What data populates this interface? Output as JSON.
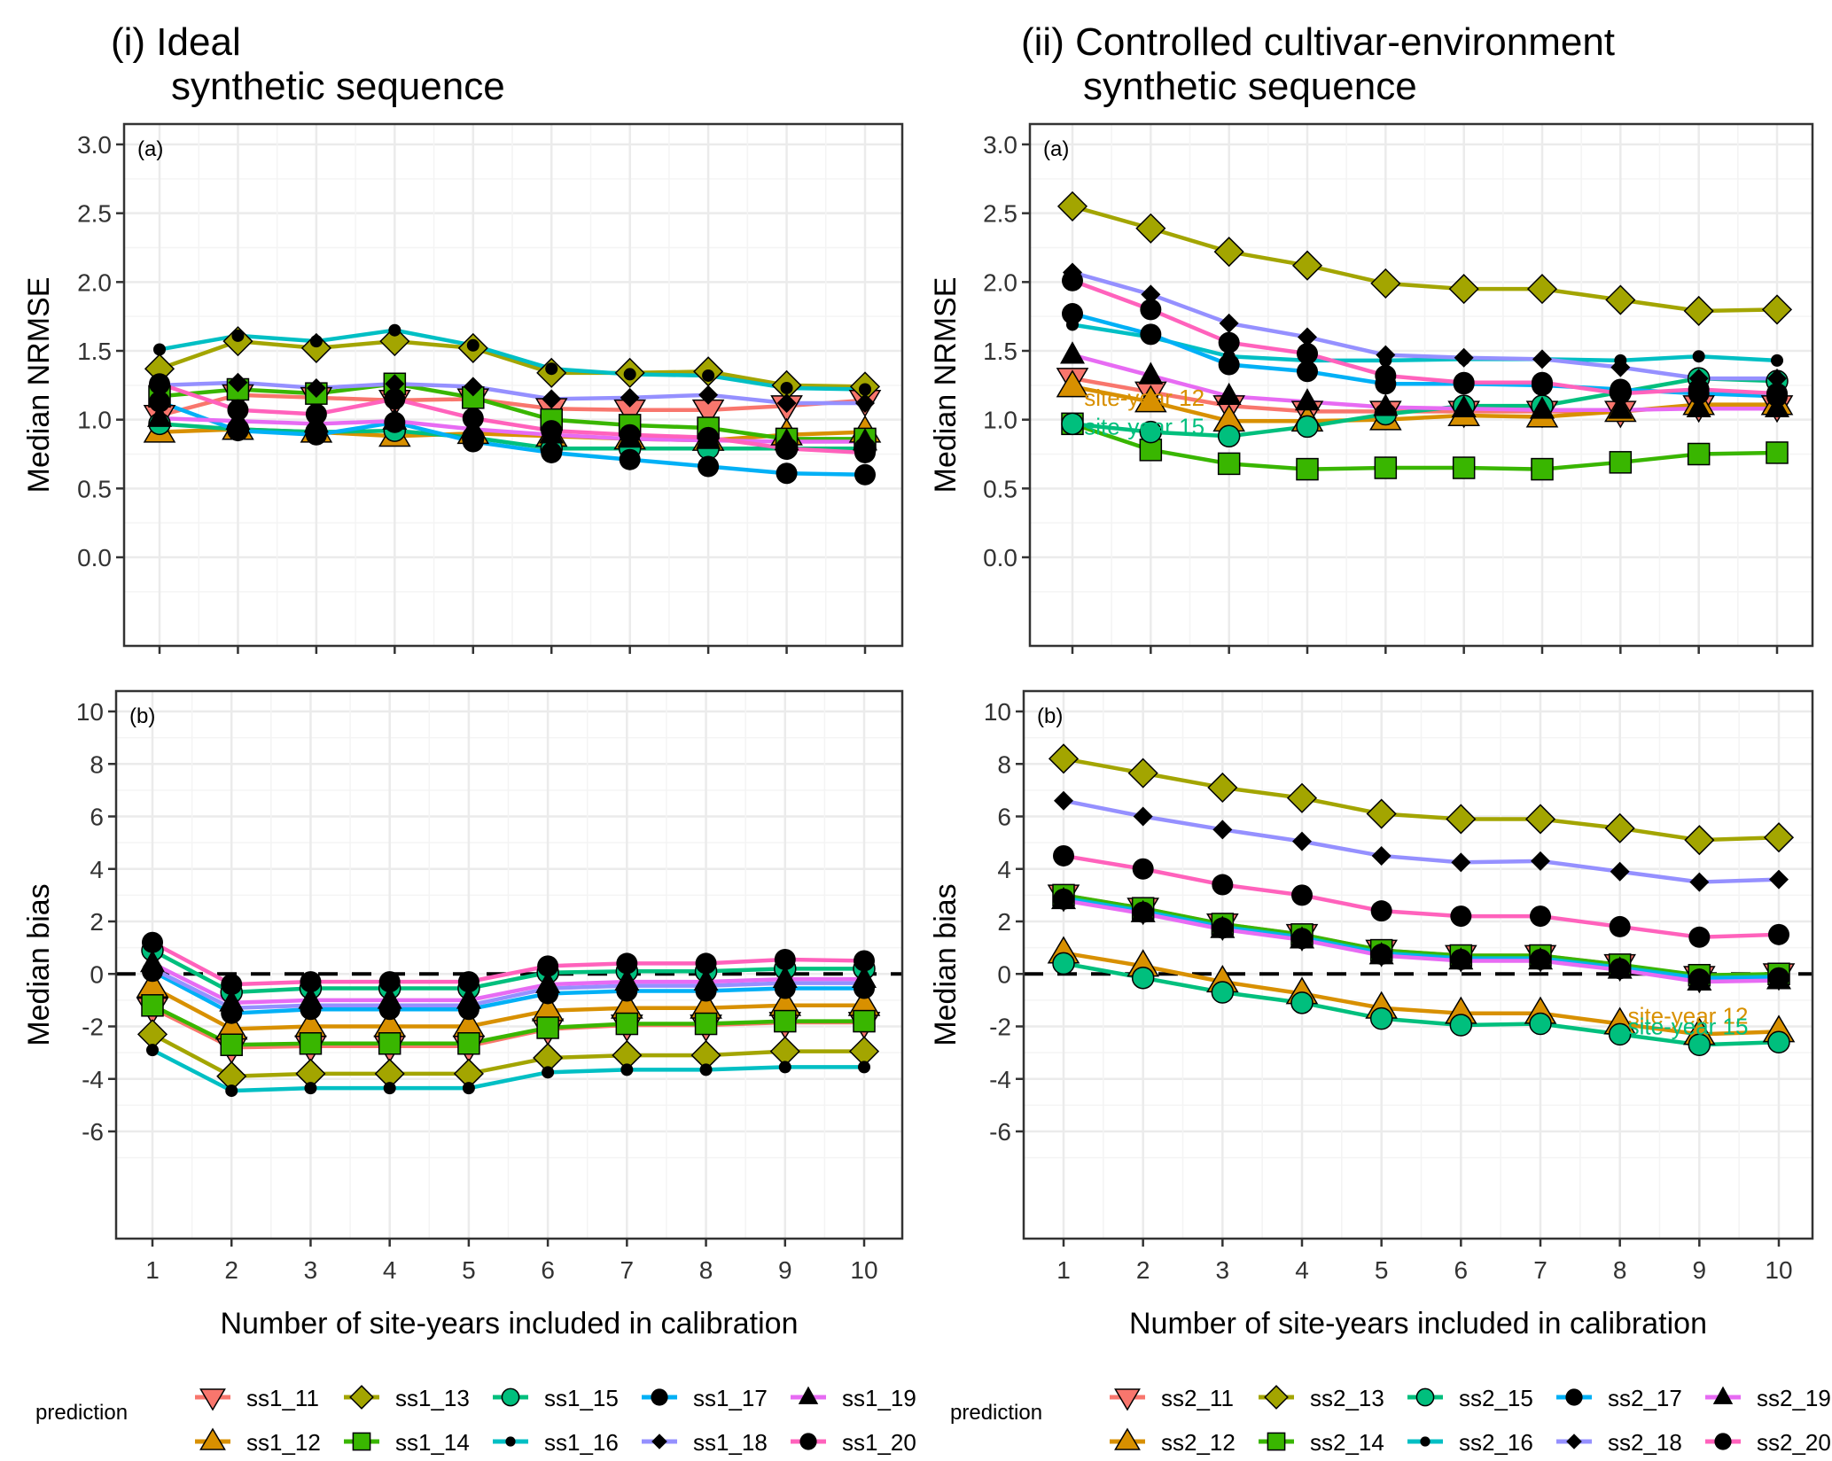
{
  "colors": {
    "11": "#F8766D",
    "12": "#D89000",
    "13": "#A3A500",
    "14": "#39B600",
    "15": "#00BF7D",
    "16": "#00BFC4",
    "17": "#00B0F6",
    "18": "#9590FF",
    "19": "#E76BF3",
    "20": "#FF62BC"
  },
  "legend_title": "prediction",
  "chart_data": [
    {
      "id": "i-a",
      "type": "line",
      "column_title": [
        "(i) Ideal",
        "synthetic sequence"
      ],
      "panel_tag": "(a)",
      "ylabel": "Median NRMSE",
      "xlabel": "",
      "x": [
        1,
        2,
        3,
        4,
        5,
        6,
        7,
        8,
        9,
        10
      ],
      "ylim": [
        0,
        3.0
      ],
      "yticks": [
        "0.0",
        "0.5",
        "1.0",
        "1.5",
        "2.0",
        "2.5",
        "3.0"
      ],
      "ytick_values": [
        0,
        0.5,
        1,
        1.5,
        2,
        2.5,
        3
      ],
      "grid": true,
      "series": [
        {
          "name": "ss1_11",
          "key": "11",
          "shape": "tri-down",
          "values": [
            1.03,
            1.18,
            1.16,
            1.14,
            1.15,
            1.08,
            1.07,
            1.07,
            1.1,
            1.14
          ]
        },
        {
          "name": "ss1_12",
          "key": "12",
          "shape": "tri-up",
          "values": [
            0.91,
            0.93,
            0.91,
            0.88,
            0.9,
            0.88,
            0.86,
            0.85,
            0.89,
            0.91
          ]
        },
        {
          "name": "ss1_13",
          "key": "13",
          "shape": "diamond",
          "values": [
            1.37,
            1.57,
            1.52,
            1.57,
            1.52,
            1.34,
            1.34,
            1.35,
            1.25,
            1.24
          ]
        },
        {
          "name": "ss1_14",
          "key": "14",
          "shape": "square",
          "values": [
            1.17,
            1.22,
            1.19,
            1.26,
            1.16,
            1.0,
            0.96,
            0.94,
            0.86,
            0.86
          ]
        },
        {
          "name": "ss1_15",
          "key": "15",
          "shape": "circle",
          "values": [
            0.97,
            0.93,
            0.91,
            0.92,
            0.87,
            0.79,
            0.79,
            0.79,
            0.79,
            0.79
          ]
        },
        {
          "name": "ss1_16",
          "key": "16",
          "shape": "dot-small",
          "values": [
            1.51,
            1.61,
            1.57,
            1.65,
            1.54,
            1.37,
            1.33,
            1.32,
            1.23,
            1.22
          ]
        },
        {
          "name": "ss1_17",
          "key": "17",
          "shape": "dot",
          "values": [
            1.13,
            0.92,
            0.89,
            0.98,
            0.84,
            0.76,
            0.71,
            0.66,
            0.61,
            0.6
          ]
        },
        {
          "name": "ss1_18",
          "key": "18",
          "shape": "diamond-black",
          "values": [
            1.25,
            1.27,
            1.23,
            1.26,
            1.24,
            1.15,
            1.16,
            1.18,
            1.12,
            1.12
          ]
        },
        {
          "name": "ss1_19",
          "key": "19",
          "shape": "tri-black",
          "values": [
            1.01,
            0.99,
            0.97,
            0.99,
            0.93,
            0.89,
            0.86,
            0.85,
            0.84,
            0.84
          ]
        },
        {
          "name": "ss1_20",
          "key": "20",
          "shape": "dot",
          "values": [
            1.26,
            1.07,
            1.04,
            1.15,
            1.01,
            0.92,
            0.89,
            0.87,
            0.79,
            0.76
          ]
        }
      ],
      "annotations": []
    },
    {
      "id": "ii-a",
      "type": "line",
      "column_title": [
        "(ii) Controlled cultivar-environment",
        "synthetic sequence"
      ],
      "panel_tag": "(a)",
      "ylabel": "Median NRMSE",
      "xlabel": "",
      "x": [
        1,
        2,
        3,
        4,
        5,
        6,
        7,
        8,
        9,
        10
      ],
      "ylim": [
        0,
        3.0
      ],
      "yticks": [
        "0.0",
        "0.5",
        "1.0",
        "1.5",
        "2.0",
        "2.5",
        "3.0"
      ],
      "ytick_values": [
        0,
        0.5,
        1,
        1.5,
        2,
        2.5,
        3
      ],
      "grid": true,
      "series": [
        {
          "name": "ss2_11",
          "key": "11",
          "shape": "tri-down",
          "values": [
            1.3,
            1.2,
            1.1,
            1.06,
            1.06,
            1.06,
            1.06,
            1.06,
            1.1,
            1.1
          ]
        },
        {
          "name": "ss2_12",
          "key": "12",
          "shape": "tri-up",
          "values": [
            1.24,
            1.13,
            0.99,
            0.99,
            1.0,
            1.03,
            1.02,
            1.06,
            1.11,
            1.11
          ]
        },
        {
          "name": "ss2_13",
          "key": "13",
          "shape": "diamond",
          "values": [
            2.55,
            2.39,
            2.22,
            2.12,
            1.99,
            1.95,
            1.95,
            1.87,
            1.79,
            1.8
          ]
        },
        {
          "name": "ss2_14",
          "key": "14",
          "shape": "square",
          "values": [
            0.97,
            0.78,
            0.68,
            0.64,
            0.65,
            0.65,
            0.64,
            0.69,
            0.75,
            0.76
          ]
        },
        {
          "name": "ss2_15",
          "key": "15",
          "shape": "circle",
          "values": [
            0.97,
            0.91,
            0.88,
            0.95,
            1.04,
            1.1,
            1.1,
            1.2,
            1.3,
            1.28
          ]
        },
        {
          "name": "ss2_16",
          "key": "16",
          "shape": "dot-small",
          "values": [
            1.69,
            1.6,
            1.46,
            1.43,
            1.43,
            1.44,
            1.44,
            1.43,
            1.46,
            1.43
          ]
        },
        {
          "name": "ss2_17",
          "key": "17",
          "shape": "dot",
          "values": [
            1.77,
            1.62,
            1.4,
            1.35,
            1.26,
            1.26,
            1.25,
            1.22,
            1.19,
            1.17
          ]
        },
        {
          "name": "ss2_18",
          "key": "18",
          "shape": "diamond-black",
          "values": [
            2.07,
            1.91,
            1.7,
            1.6,
            1.47,
            1.45,
            1.44,
            1.38,
            1.3,
            1.3
          ]
        },
        {
          "name": "ss2_19",
          "key": "19",
          "shape": "tri-black",
          "values": [
            1.47,
            1.32,
            1.17,
            1.13,
            1.09,
            1.08,
            1.07,
            1.07,
            1.08,
            1.08
          ]
        },
        {
          "name": "ss2_20",
          "key": "20",
          "shape": "dot",
          "values": [
            2.01,
            1.8,
            1.56,
            1.48,
            1.32,
            1.27,
            1.27,
            1.19,
            1.22,
            1.19
          ]
        }
      ],
      "annotations": [
        {
          "text": "site-year 12",
          "key": "12",
          "x": 1.15,
          "y": 1.16
        },
        {
          "text": "site-year 15",
          "key": "15",
          "x": 1.15,
          "y": 0.95
        }
      ]
    },
    {
      "id": "i-b",
      "type": "line",
      "panel_tag": "(b)",
      "ylabel": "Median bias",
      "xlabel": "Number of site-years included in calibration",
      "x": [
        1,
        2,
        3,
        4,
        5,
        6,
        7,
        8,
        9,
        10
      ],
      "xticks": [
        "1",
        "2",
        "3",
        "4",
        "5",
        "6",
        "7",
        "8",
        "9",
        "10"
      ],
      "ylim": [
        -6.8,
        10.8
      ],
      "yticks": [
        "-6",
        "-4",
        "-2",
        "0",
        "2",
        "4",
        "6",
        "8",
        "10"
      ],
      "ytick_values": [
        -6,
        -4,
        -2,
        0,
        2,
        4,
        6,
        8,
        10
      ],
      "reference_line": 0,
      "grid": true,
      "series": [
        {
          "name": "ss1_11",
          "key": "11",
          "shape": "tri-down",
          "values": [
            -1.3,
            -2.8,
            -2.75,
            -2.75,
            -2.75,
            -2.1,
            -1.95,
            -1.95,
            -1.85,
            -1.85
          ]
        },
        {
          "name": "ss1_12",
          "key": "12",
          "shape": "tri-up",
          "values": [
            -0.5,
            -2.1,
            -2.0,
            -2.0,
            -2.0,
            -1.4,
            -1.3,
            -1.3,
            -1.2,
            -1.2
          ]
        },
        {
          "name": "ss1_13",
          "key": "13",
          "shape": "diamond",
          "values": [
            -2.3,
            -3.9,
            -3.8,
            -3.8,
            -3.8,
            -3.2,
            -3.1,
            -3.1,
            -2.95,
            -2.95
          ]
        },
        {
          "name": "ss1_14",
          "key": "14",
          "shape": "square",
          "values": [
            -1.2,
            -2.7,
            -2.65,
            -2.65,
            -2.65,
            -2.05,
            -1.9,
            -1.9,
            -1.8,
            -1.8
          ]
        },
        {
          "name": "ss1_15",
          "key": "15",
          "shape": "circle",
          "values": [
            0.9,
            -0.7,
            -0.55,
            -0.55,
            -0.55,
            0.05,
            0.1,
            0.1,
            0.2,
            0.2
          ]
        },
        {
          "name": "ss1_16",
          "key": "16",
          "shape": "dot-small",
          "values": [
            -2.9,
            -4.45,
            -4.35,
            -4.35,
            -4.35,
            -3.75,
            -3.65,
            -3.65,
            -3.55,
            -3.55
          ]
        },
        {
          "name": "ss1_17",
          "key": "17",
          "shape": "dot",
          "values": [
            0.1,
            -1.5,
            -1.35,
            -1.35,
            -1.35,
            -0.75,
            -0.65,
            -0.65,
            -0.55,
            -0.55
          ]
        },
        {
          "name": "ss1_18",
          "key": "18",
          "shape": "diamond-black",
          "values": [
            0.2,
            -1.3,
            -1.2,
            -1.2,
            -1.2,
            -0.55,
            -0.45,
            -0.45,
            -0.35,
            -0.35
          ]
        },
        {
          "name": "ss1_19",
          "key": "19",
          "shape": "tri-black",
          "values": [
            0.4,
            -1.1,
            -1.0,
            -1.0,
            -1.0,
            -0.4,
            -0.3,
            -0.3,
            -0.2,
            -0.2
          ]
        },
        {
          "name": "ss1_20",
          "key": "20",
          "shape": "dot",
          "values": [
            1.2,
            -0.4,
            -0.3,
            -0.3,
            -0.3,
            0.3,
            0.4,
            0.4,
            0.55,
            0.5
          ]
        }
      ],
      "annotations": []
    },
    {
      "id": "ii-b",
      "type": "line",
      "panel_tag": "(b)",
      "ylabel": "Median bias",
      "xlabel": "Number of site-years included in calibration",
      "x": [
        1,
        2,
        3,
        4,
        5,
        6,
        7,
        8,
        9,
        10
      ],
      "xticks": [
        "1",
        "2",
        "3",
        "4",
        "5",
        "6",
        "7",
        "8",
        "9",
        "10"
      ],
      "ylim": [
        -6.8,
        10.8
      ],
      "yticks": [
        "-6",
        "-4",
        "-2",
        "0",
        "2",
        "4",
        "6",
        "8",
        "10"
      ],
      "ytick_values": [
        -6,
        -4,
        -2,
        0,
        2,
        4,
        6,
        8,
        10
      ],
      "reference_line": 0,
      "grid": true,
      "series": [
        {
          "name": "ss2_11",
          "key": "11",
          "shape": "tri-down",
          "values": [
            3.0,
            2.5,
            1.9,
            1.5,
            0.9,
            0.7,
            0.7,
            0.35,
            -0.1,
            0.0
          ]
        },
        {
          "name": "ss2_12",
          "key": "12",
          "shape": "tri-up",
          "values": [
            0.8,
            0.3,
            -0.3,
            -0.75,
            -1.3,
            -1.5,
            -1.5,
            -1.9,
            -2.3,
            -2.2
          ]
        },
        {
          "name": "ss2_13",
          "key": "13",
          "shape": "diamond",
          "values": [
            8.2,
            7.65,
            7.1,
            6.7,
            6.1,
            5.9,
            5.9,
            5.55,
            5.1,
            5.2
          ]
        },
        {
          "name": "ss2_14",
          "key": "14",
          "shape": "square",
          "values": [
            3.0,
            2.5,
            1.9,
            1.5,
            0.9,
            0.7,
            0.7,
            0.35,
            -0.05,
            0.0
          ]
        },
        {
          "name": "ss2_15",
          "key": "15",
          "shape": "circle",
          "values": [
            0.4,
            -0.15,
            -0.7,
            -1.1,
            -1.7,
            -1.95,
            -1.9,
            -2.3,
            -2.7,
            -2.6
          ]
        },
        {
          "name": "ss2_16",
          "key": "16",
          "shape": "dot-small",
          "values": [
            2.9,
            2.4,
            1.8,
            1.4,
            0.8,
            0.6,
            0.6,
            0.25,
            -0.15,
            -0.1
          ]
        },
        {
          "name": "ss2_17",
          "key": "17",
          "shape": "dot",
          "values": [
            2.85,
            2.35,
            1.75,
            1.35,
            0.75,
            0.55,
            0.55,
            0.2,
            -0.2,
            -0.15
          ]
        },
        {
          "name": "ss2_18",
          "key": "18",
          "shape": "diamond-black",
          "values": [
            6.6,
            6.0,
            5.5,
            5.05,
            4.5,
            4.25,
            4.3,
            3.9,
            3.5,
            3.6
          ]
        },
        {
          "name": "ss2_19",
          "key": "19",
          "shape": "tri-black",
          "values": [
            2.8,
            2.3,
            1.7,
            1.3,
            0.7,
            0.5,
            0.5,
            0.15,
            -0.3,
            -0.25
          ]
        },
        {
          "name": "ss2_20",
          "key": "20",
          "shape": "dot",
          "values": [
            4.5,
            4.0,
            3.4,
            3.0,
            2.4,
            2.2,
            2.2,
            1.8,
            1.4,
            1.5
          ]
        }
      ],
      "annotations": [
        {
          "text": "site-year 12",
          "key": "12",
          "x": 8.1,
          "y": -1.6
        },
        {
          "text": "site-year 15",
          "key": "15",
          "x": 8.1,
          "y": -2.0
        }
      ]
    }
  ],
  "legends": [
    {
      "title": "prediction",
      "items": [
        {
          "label": "ss1_11",
          "key": "11",
          "shape": "tri-down"
        },
        {
          "label": "ss1_12",
          "key": "12",
          "shape": "tri-up"
        },
        {
          "label": "ss1_13",
          "key": "13",
          "shape": "diamond"
        },
        {
          "label": "ss1_14",
          "key": "14",
          "shape": "square"
        },
        {
          "label": "ss1_15",
          "key": "15",
          "shape": "circle"
        },
        {
          "label": "ss1_16",
          "key": "16",
          "shape": "dot-small"
        },
        {
          "label": "ss1_17",
          "key": "17",
          "shape": "dot"
        },
        {
          "label": "ss1_18",
          "key": "18",
          "shape": "diamond-black"
        },
        {
          "label": "ss1_19",
          "key": "19",
          "shape": "tri-black"
        },
        {
          "label": "ss1_20",
          "key": "20",
          "shape": "dot"
        }
      ]
    },
    {
      "title": "prediction",
      "items": [
        {
          "label": "ss2_11",
          "key": "11",
          "shape": "tri-down"
        },
        {
          "label": "ss2_12",
          "key": "12",
          "shape": "tri-up"
        },
        {
          "label": "ss2_13",
          "key": "13",
          "shape": "diamond"
        },
        {
          "label": "ss2_14",
          "key": "14",
          "shape": "square"
        },
        {
          "label": "ss2_15",
          "key": "15",
          "shape": "circle"
        },
        {
          "label": "ss2_16",
          "key": "16",
          "shape": "dot-small"
        },
        {
          "label": "ss2_17",
          "key": "17",
          "shape": "dot"
        },
        {
          "label": "ss2_18",
          "key": "18",
          "shape": "diamond-black"
        },
        {
          "label": "ss2_19",
          "key": "19",
          "shape": "tri-black"
        },
        {
          "label": "ss2_20",
          "key": "20",
          "shape": "dot"
        }
      ]
    }
  ]
}
